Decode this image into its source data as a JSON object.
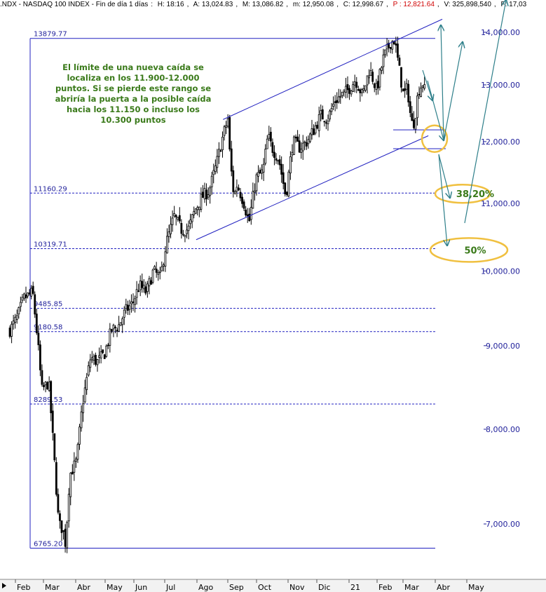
{
  "header": {
    "ticker": ".NDX - NASDAQ 100 INDEX - Fin de día 1 días",
    "high": "H: 18:16",
    "ask": "A: 13,024.83",
    "bid": "M: 13,086.82",
    "mid": "m: 12,950.08",
    "close": "C: 12,998.67",
    "price": "P : 12,821.64",
    "volume": "V: 325,898,540",
    "fractal": "F: 17,03",
    "price_color": "#d00000"
  },
  "annotation": {
    "text": "El límite de una nueva caída se localiza en los 11.900-12.000 puntos. Si se pierde este rango se abriría la puerta a la posible caída hacia los 11.150 o incluso los 10.300 puntos"
  },
  "chart_data": {
    "type": "candlestick",
    "x_labels": [
      "Feb",
      "Mar",
      "Abr",
      "May",
      "Jun",
      "Jul",
      "Ago",
      "Sep",
      "Oct",
      "Nov",
      "Dic",
      "21",
      "Feb",
      "Mar",
      "Abr",
      "May"
    ],
    "y_ticks": [
      7000,
      8000,
      9000,
      10000,
      11000,
      12000,
      13000,
      14000
    ],
    "y_tick_labels": [
      "7,000.00",
      "8,000.00",
      "9,000.00",
      "10,000.00",
      "11,000.00",
      "12,000.00",
      "13,000.00",
      "14,000.00"
    ],
    "ylim": [
      6500,
      14500
    ],
    "y_scale": "log",
    "fib_levels": [
      {
        "value": 13879.77,
        "label": "13879.77"
      },
      {
        "value": 11160.29,
        "label": "11160.29"
      },
      {
        "value": 10319.71,
        "label": "10319.71"
      },
      {
        "value": 9485.85,
        "label": "9485.85"
      },
      {
        "value": 9180.58,
        "label": "9180.58"
      },
      {
        "value": 8289.53,
        "label": "8289.53"
      },
      {
        "value": 6765.2,
        "label": "6765.20"
      }
    ],
    "support_zone": [
      11900,
      12200
    ],
    "targets": [
      {
        "label": "38,20%",
        "value": 11150
      },
      {
        "label": "50%",
        "value": 10300
      }
    ],
    "close_path": [
      [
        "2020-01-27",
        9200
      ],
      [
        "2020-02-03",
        9350
      ],
      [
        "2020-02-10",
        9620
      ],
      [
        "2020-02-19",
        9700
      ],
      [
        "2020-02-24",
        9050
      ],
      [
        "2020-02-28",
        8450
      ],
      [
        "2020-03-06",
        8550
      ],
      [
        "2020-03-12",
        7600
      ],
      [
        "2020-03-16",
        7000
      ],
      [
        "2020-03-20",
        6950
      ],
      [
        "2020-03-23",
        6800
      ],
      [
        "2020-03-27",
        7500
      ],
      [
        "2020-04-03",
        7650
      ],
      [
        "2020-04-09",
        8300
      ],
      [
        "2020-04-17",
        8850
      ],
      [
        "2020-04-24",
        8800
      ],
      [
        "2020-05-01",
        8900
      ],
      [
        "2020-05-08",
        9200
      ],
      [
        "2020-05-15",
        9250
      ],
      [
        "2020-05-22",
        9450
      ],
      [
        "2020-05-29",
        9550
      ],
      [
        "2020-06-05",
        9800
      ],
      [
        "2020-06-12",
        9700
      ],
      [
        "2020-06-19",
        10000
      ],
      [
        "2020-06-26",
        9900
      ],
      [
        "2020-07-02",
        10400
      ],
      [
        "2020-07-10",
        10800
      ],
      [
        "2020-07-17",
        10600
      ],
      [
        "2020-07-24",
        10600
      ],
      [
        "2020-07-31",
        10900
      ],
      [
        "2020-08-07",
        11100
      ],
      [
        "2020-08-14",
        11200
      ],
      [
        "2020-08-21",
        11600
      ],
      [
        "2020-08-28",
        12100
      ],
      [
        "2020-09-02",
        12400
      ],
      [
        "2020-09-04",
        11700
      ],
      [
        "2020-09-08",
        11100
      ],
      [
        "2020-09-11",
        11300
      ],
      [
        "2020-09-18",
        11000
      ],
      [
        "2020-09-23",
        10700
      ],
      [
        "2020-09-30",
        11400
      ],
      [
        "2020-10-07",
        11500
      ],
      [
        "2020-10-12",
        12100
      ],
      [
        "2020-10-16",
        11900
      ],
      [
        "2020-10-23",
        11700
      ],
      [
        "2020-10-30",
        11100
      ],
      [
        "2020-11-06",
        12000
      ],
      [
        "2020-11-13",
        11900
      ],
      [
        "2020-11-20",
        12000
      ],
      [
        "2020-11-27",
        12200
      ],
      [
        "2020-12-04",
        12450
      ],
      [
        "2020-12-11",
        12400
      ],
      [
        "2020-12-18",
        12700
      ],
      [
        "2020-12-24",
        12800
      ],
      [
        "2020-12-31",
        12900
      ],
      [
        "2021-01-08",
        13100
      ],
      [
        "2021-01-15",
        12800
      ],
      [
        "2021-01-22",
        13300
      ],
      [
        "2021-01-29",
        12900
      ],
      [
        "2021-02-05",
        13500
      ],
      [
        "2021-02-12",
        13800
      ],
      [
        "2021-02-16",
        13850
      ],
      [
        "2021-02-19",
        13500
      ],
      [
        "2021-02-25",
        12800
      ],
      [
        "2021-03-01",
        12950
      ],
      [
        "2021-03-05",
        12300
      ],
      [
        "2021-03-08",
        12350
      ],
      [
        "2021-03-12",
        12900
      ],
      [
        "2021-03-17",
        13050
      ],
      [
        "2021-03-19",
        12800
      ]
    ],
    "colors": {
      "candles": "#000000",
      "trendline": "#2020c0",
      "fib": "#2020c0",
      "projection": "#2e7f8a",
      "highlight": "#f0c040",
      "note_text": "#3a7a1a"
    }
  }
}
